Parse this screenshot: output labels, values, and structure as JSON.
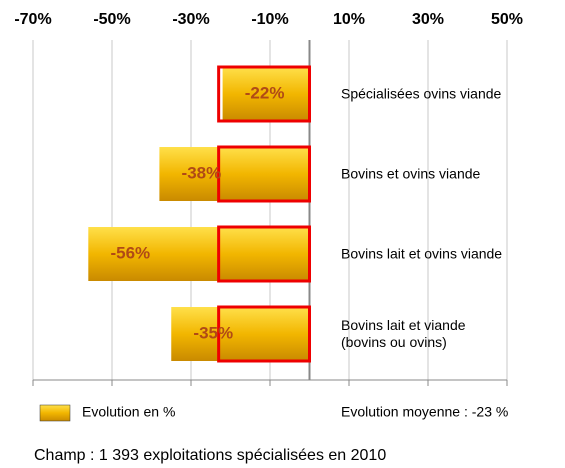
{
  "chart_data": {
    "type": "barh",
    "categories": [
      "Spécialisées ovins viande",
      "Bovins et ovins viande",
      "Bovins lait et ovins viande",
      "Bovins lait et viande\n(bovins ou ovins)"
    ],
    "values": [
      -22,
      -38,
      -56,
      -35
    ],
    "value_labels": [
      "-22%",
      "-38%",
      "-56%",
      "-35%"
    ],
    "series_name": "Evolution en %",
    "color": "#f0b400",
    "mean": {
      "value": -23,
      "label": "Evolution moyenne : -23 %"
    },
    "mean_color": "#ee0000",
    "xlim": [
      -70,
      50
    ],
    "xticks": [
      {
        "value": -70,
        "label": "-70%"
      },
      {
        "value": -50,
        "label": "-50%"
      },
      {
        "value": -30,
        "label": "-30%"
      },
      {
        "value": -10,
        "label": "-10%"
      },
      {
        "value": 10,
        "label": "10%"
      },
      {
        "value": 30,
        "label": "30%"
      },
      {
        "value": 50,
        "label": "50%"
      }
    ],
    "grid": true,
    "footnote": "Champ : 1 393 exploitations spécialisées  en 2010"
  }
}
